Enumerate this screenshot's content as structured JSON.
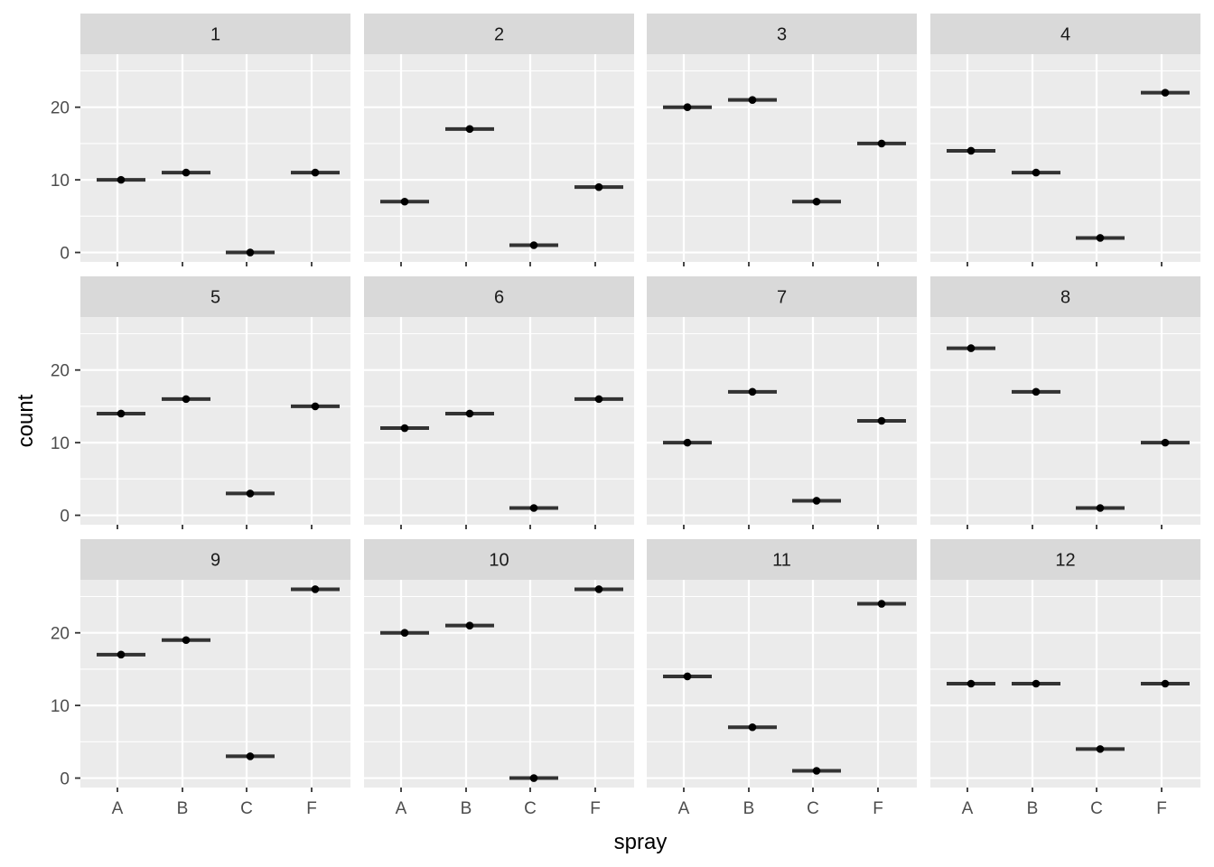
{
  "chart_data": {
    "type": "scatter",
    "facets": [
      "1",
      "2",
      "3",
      "4",
      "5",
      "6",
      "7",
      "8",
      "9",
      "10",
      "11",
      "12"
    ],
    "categories": [
      "A",
      "B",
      "C",
      "F"
    ],
    "xlabel": "spray",
    "ylabel": "count",
    "ylim": [
      -1.3,
      27.3
    ],
    "yticks": [
      0,
      10,
      20
    ],
    "grid": true,
    "colors": {
      "panel_bg": "#ebebeb",
      "strip_bg": "#d9d9d9",
      "grid_major": "#ffffff",
      "point": "#000000",
      "crossbar": "#333333"
    },
    "values": [
      [
        10,
        11,
        0,
        11
      ],
      [
        7,
        17,
        1,
        9
      ],
      [
        20,
        21,
        7,
        15
      ],
      [
        14,
        11,
        2,
        22
      ],
      [
        14,
        16,
        3,
        15
      ],
      [
        12,
        14,
        1,
        16
      ],
      [
        10,
        17,
        2,
        13
      ],
      [
        23,
        17,
        1,
        10
      ],
      [
        17,
        19,
        3,
        26
      ],
      [
        20,
        21,
        0,
        26
      ],
      [
        14,
        7,
        1,
        24
      ],
      [
        13,
        13,
        4,
        13
      ]
    ]
  }
}
